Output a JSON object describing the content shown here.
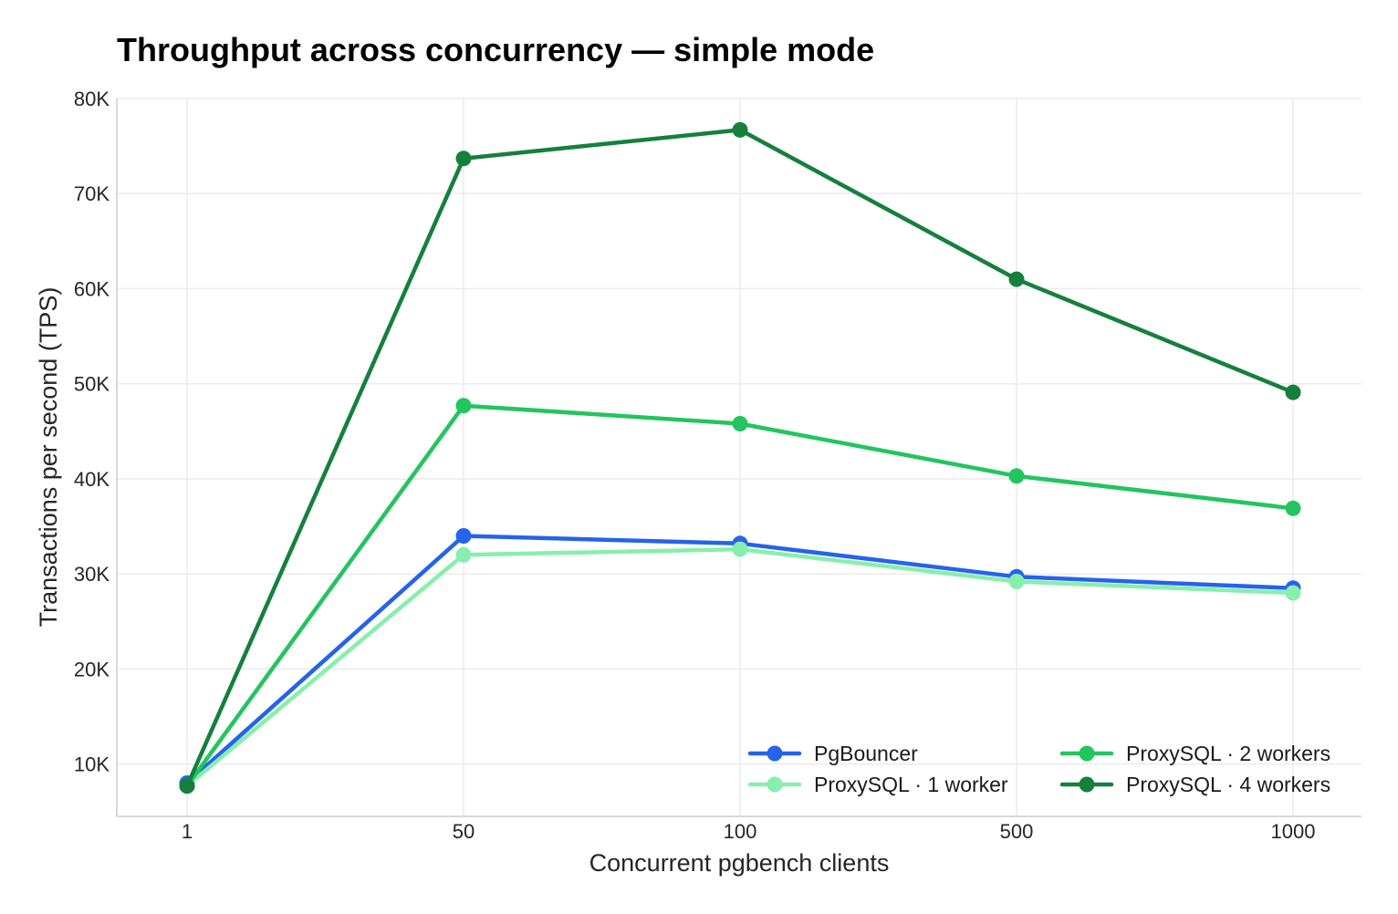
{
  "chart_data": {
    "type": "line",
    "title": "Throughput across concurrency — simple mode",
    "xlabel": "Concurrent pgbench clients",
    "ylabel": "Transactions per second (TPS)",
    "categories": [
      "1",
      "50",
      "100",
      "500",
      "1000"
    ],
    "ylim": [
      4500,
      80000
    ],
    "yticks": [
      10000,
      20000,
      30000,
      40000,
      50000,
      60000,
      70000,
      80000
    ],
    "ytick_labels": [
      "10K",
      "20K",
      "30K",
      "40K",
      "50K",
      "60K",
      "70K",
      "80K"
    ],
    "grid": true,
    "legend_position": "bottom-right",
    "series": [
      {
        "name": "PgBouncer",
        "color": "#2563eb",
        "values": [
          8000,
          34000,
          33200,
          29700,
          28500
        ]
      },
      {
        "name": "ProxySQL · 1 worker",
        "color": "#86efac",
        "values": [
          7700,
          32000,
          32600,
          29200,
          28000
        ]
      },
      {
        "name": "ProxySQL · 2 workers",
        "color": "#22c55e",
        "values": [
          7700,
          47700,
          45800,
          40300,
          36900
        ]
      },
      {
        "name": "ProxySQL · 4 workers",
        "color": "#15803d",
        "values": [
          7700,
          73700,
          76700,
          61000,
          49100
        ]
      }
    ]
  }
}
